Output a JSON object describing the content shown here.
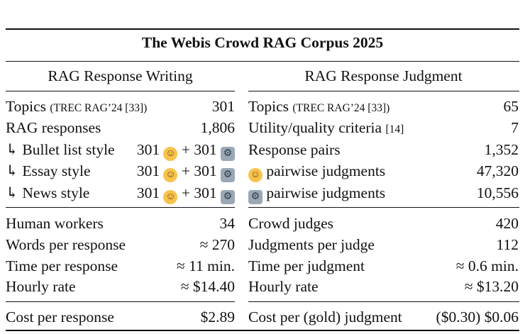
{
  "title": "The Webis Crowd RAG Corpus 2025",
  "headers": {
    "left": "RAG Response Writing",
    "right": "RAG Response Judgment"
  },
  "left": {
    "topics_label": "Topics",
    "topics_ref": "(TREC RAG’24 [33])",
    "topics_value": "301",
    "responses_label": "RAG responses",
    "responses_value": "1,806",
    "bullet_label": "↳ Bullet list style",
    "essay_label": "↳ Essay style",
    "news_label": "↳ News style",
    "human_count": "301",
    "plus": "+ 301",
    "workers_label": "Human workers",
    "workers_value": "34",
    "words_label": "Words per response",
    "words_value": "≈ 270",
    "time_label": "Time per response",
    "time_value": "≈ 11 min.",
    "rate_label": "Hourly rate",
    "rate_value": "≈ $14.40",
    "cost_label": "Cost per response",
    "cost_value": "$2.89"
  },
  "right": {
    "topics_label": "Topics",
    "topics_ref": "(TREC RAG’24 [33])",
    "topics_value": "65",
    "criteria_label": "Utility/quality criteria",
    "criteria_ref": "[14]",
    "criteria_value": "7",
    "pairs_label": "Response pairs",
    "pairs_value": "1,352",
    "human_judg_label": "pairwise judgments",
    "human_judg_value": "47,320",
    "robot_judg_label": "pairwise judgments",
    "robot_judg_value": "10,556",
    "judges_label": "Crowd judges",
    "judges_value": "420",
    "per_judge_label": "Judgments per judge",
    "per_judge_value": "112",
    "time_label": "Time per judgment",
    "time_value": "≈ 0.6 min.",
    "rate_label": "Hourly rate",
    "rate_value": "≈ $13.20",
    "cost_label": "Cost per (gold) judgment",
    "cost_value": "($0.30) $0.06"
  },
  "icons": {
    "human": "human-emoji-icon",
    "robot": "robot-emoji-icon"
  }
}
